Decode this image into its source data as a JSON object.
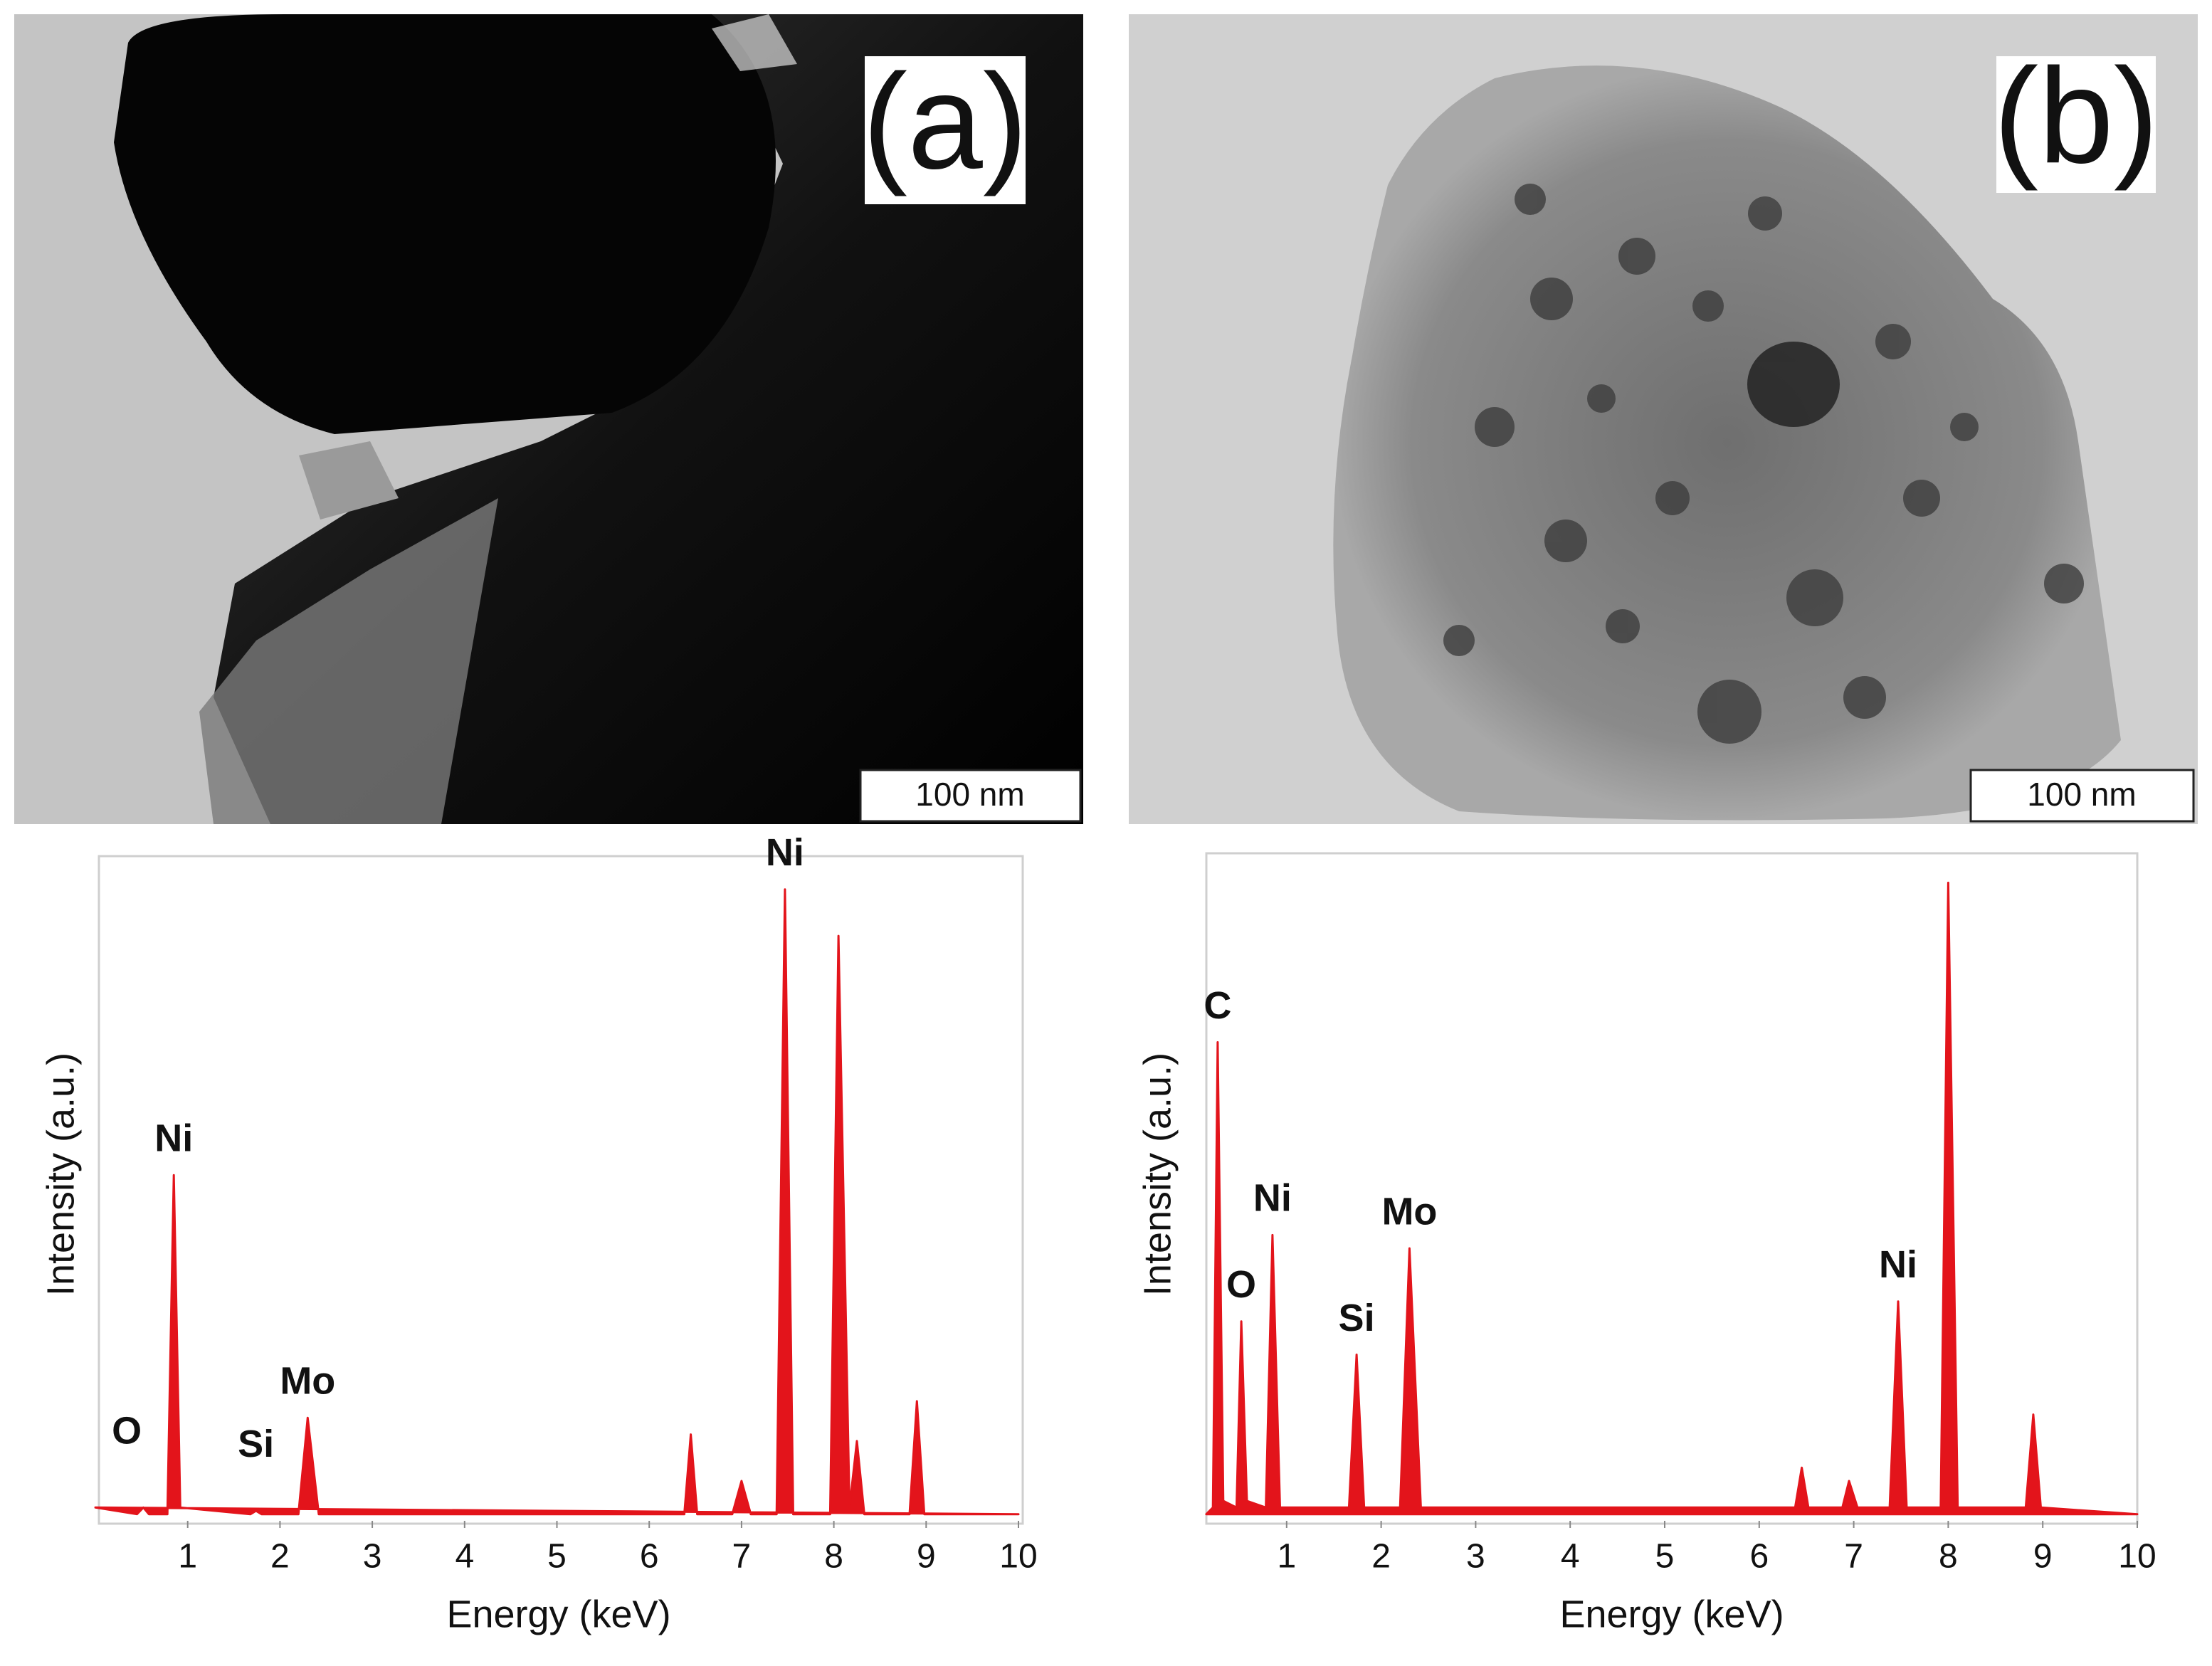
{
  "panels": [
    {
      "label": "(a)",
      "scale_bar": "100 nm"
    },
    {
      "label": "(b)",
      "scale_bar": "100 nm"
    }
  ],
  "chart_data": [
    {
      "type": "area",
      "xlabel": "Energy (keV)",
      "ylabel": "Intensity (a.u.)",
      "color": "#e3141b",
      "xlim": [
        0,
        10
      ],
      "ylim": [
        0,
        100
      ],
      "xticks": [
        1,
        2,
        3,
        4,
        5,
        6,
        7,
        8,
        9,
        10
      ],
      "x": [
        0,
        0.45,
        0.52,
        0.58,
        0.78,
        0.85,
        0.92,
        1.68,
        1.74,
        1.8,
        2.2,
        2.3,
        2.42,
        6.38,
        6.45,
        6.52,
        6.9,
        7.0,
        7.1,
        7.38,
        7.47,
        7.56,
        7.96,
        8.05,
        8.17,
        8.25,
        8.33,
        8.82,
        8.9,
        8.98,
        10
      ],
      "values": [
        2,
        1,
        2,
        1,
        1,
        52,
        2,
        1,
        1.5,
        1,
        1,
        15.5,
        1,
        1,
        13,
        1,
        1,
        6,
        1,
        1,
        95,
        1,
        1,
        88,
        2,
        12,
        1,
        1,
        18,
        1,
        1
      ],
      "annotations": [
        {
          "text": "O",
          "x": 0.34,
          "y": 8
        },
        {
          "text": "Ni",
          "x": 0.85,
          "y": 52
        },
        {
          "text": "Si",
          "x": 1.74,
          "y": 6
        },
        {
          "text": "Mo",
          "x": 2.3,
          "y": 15.5
        },
        {
          "text": "Ni",
          "x": 7.47,
          "y": 95
        }
      ]
    },
    {
      "type": "area",
      "xlabel": "Energy (keV)",
      "ylabel": "Intensity (a.u.)",
      "color": "#e3141b",
      "xlim": [
        0,
        10
      ],
      "ylim": [
        0,
        100
      ],
      "xticks": [
        1,
        2,
        3,
        4,
        5,
        6,
        7,
        8,
        9,
        10
      ],
      "x": [
        0.15,
        0.22,
        0.27,
        0.33,
        0.47,
        0.52,
        0.58,
        0.78,
        0.85,
        0.93,
        1.66,
        1.74,
        1.82,
        2.2,
        2.3,
        2.42,
        6.38,
        6.45,
        6.52,
        6.88,
        6.95,
        7.04,
        7.38,
        7.47,
        7.56,
        7.92,
        8.0,
        8.1,
        8.82,
        8.9,
        8.98,
        10
      ],
      "values": [
        1,
        2,
        72,
        3,
        2,
        30,
        3,
        2,
        43,
        2,
        2,
        25,
        2,
        2,
        41,
        2,
        2,
        8,
        2,
        2,
        6,
        2,
        2,
        33,
        2,
        2,
        96,
        2,
        2,
        16,
        2,
        1
      ],
      "annotations": [
        {
          "text": "C",
          "x": 0.27,
          "y": 72
        },
        {
          "text": "O",
          "x": 0.52,
          "y": 30
        },
        {
          "text": "Ni",
          "x": 0.85,
          "y": 43
        },
        {
          "text": "Si",
          "x": 1.74,
          "y": 25
        },
        {
          "text": "Mo",
          "x": 2.3,
          "y": 41
        },
        {
          "text": "Ni",
          "x": 7.47,
          "y": 33
        }
      ]
    }
  ]
}
